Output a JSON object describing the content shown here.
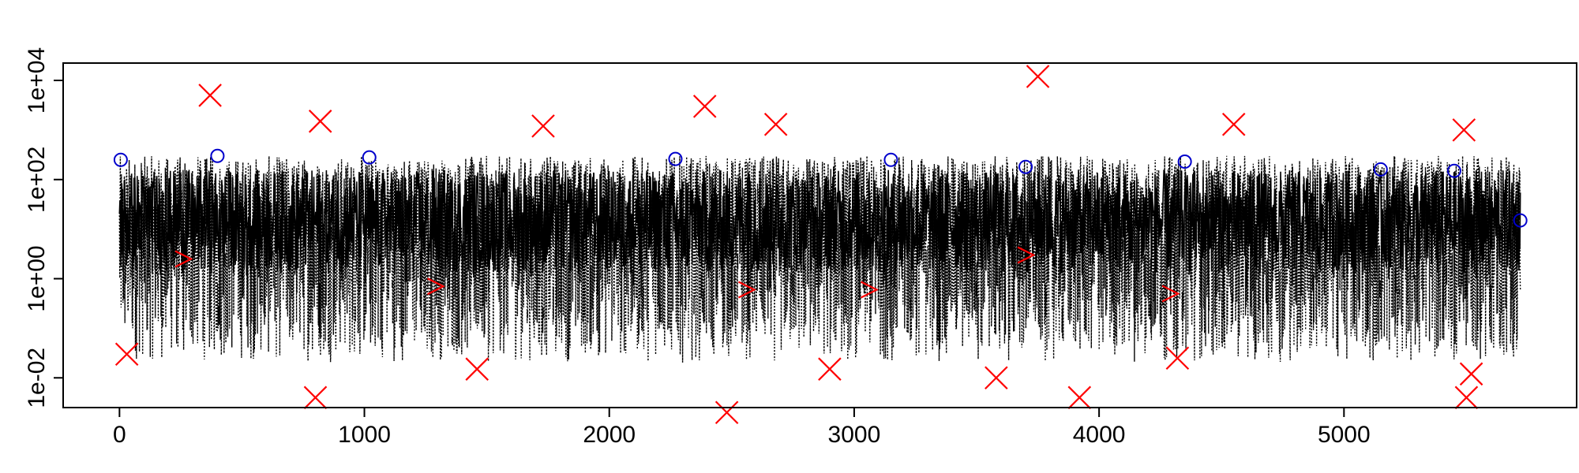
{
  "chart_data": {
    "type": "scatter",
    "title": "",
    "xlabel": "",
    "ylabel": "",
    "xlim": [
      -230,
      5950
    ],
    "ylim_log10": [
      -2.6,
      4.35
    ],
    "y_scale": "log",
    "grid": false,
    "x_ticks": [
      {
        "value": 0,
        "label": "0"
      },
      {
        "value": 1000,
        "label": "1000"
      },
      {
        "value": 2000,
        "label": "2000"
      },
      {
        "value": 3000,
        "label": "3000"
      },
      {
        "value": 4000,
        "label": "4000"
      },
      {
        "value": 5000,
        "label": "5000"
      }
    ],
    "y_ticks": [
      {
        "value": 0.01,
        "label": "1e-02"
      },
      {
        "value": 1,
        "label": "1e+00"
      },
      {
        "value": 100,
        "label": "1e+02"
      },
      {
        "value": 10000,
        "label": "1e+04"
      }
    ],
    "series": [
      {
        "marker": "dotted-line",
        "color": "#000000",
        "x_range": [
          0,
          5720
        ],
        "y_typical_range": [
          0.02,
          300
        ]
      },
      {
        "marker": "circle",
        "color": "#0000cc",
        "points": [
          [
            5,
            250
          ],
          [
            400,
            300
          ],
          [
            1020,
            280
          ],
          [
            2270,
            260
          ],
          [
            3150,
            250
          ],
          [
            3700,
            180
          ],
          [
            4350,
            230
          ],
          [
            5150,
            160
          ],
          [
            5450,
            150
          ],
          [
            5720,
            15
          ]
        ]
      },
      {
        "marker": "x-cross",
        "color": "#ff0000",
        "points": [
          [
            370,
            5000
          ],
          [
            820,
            1500
          ],
          [
            1730,
            1200
          ],
          [
            2390,
            3000
          ],
          [
            2680,
            1300
          ],
          [
            3750,
            12000
          ],
          [
            4550,
            1300
          ],
          [
            5490,
            1000
          ],
          [
            800,
            0.004
          ],
          [
            2480,
            0.002
          ],
          [
            3580,
            0.01
          ],
          [
            3920,
            0.004
          ],
          [
            5500,
            0.004
          ],
          [
            5520,
            0.012
          ],
          [
            30,
            0.03
          ],
          [
            1460,
            0.015
          ],
          [
            2900,
            0.015
          ],
          [
            4320,
            0.025
          ]
        ]
      },
      {
        "marker": "chevron-right",
        "color": "#ff0000",
        "points": [
          [
            260,
            2.5
          ],
          [
            1290,
            0.7
          ],
          [
            2560,
            0.6
          ],
          [
            3060,
            0.6
          ],
          [
            3700,
            3
          ],
          [
            4290,
            0.5
          ]
        ]
      }
    ]
  }
}
